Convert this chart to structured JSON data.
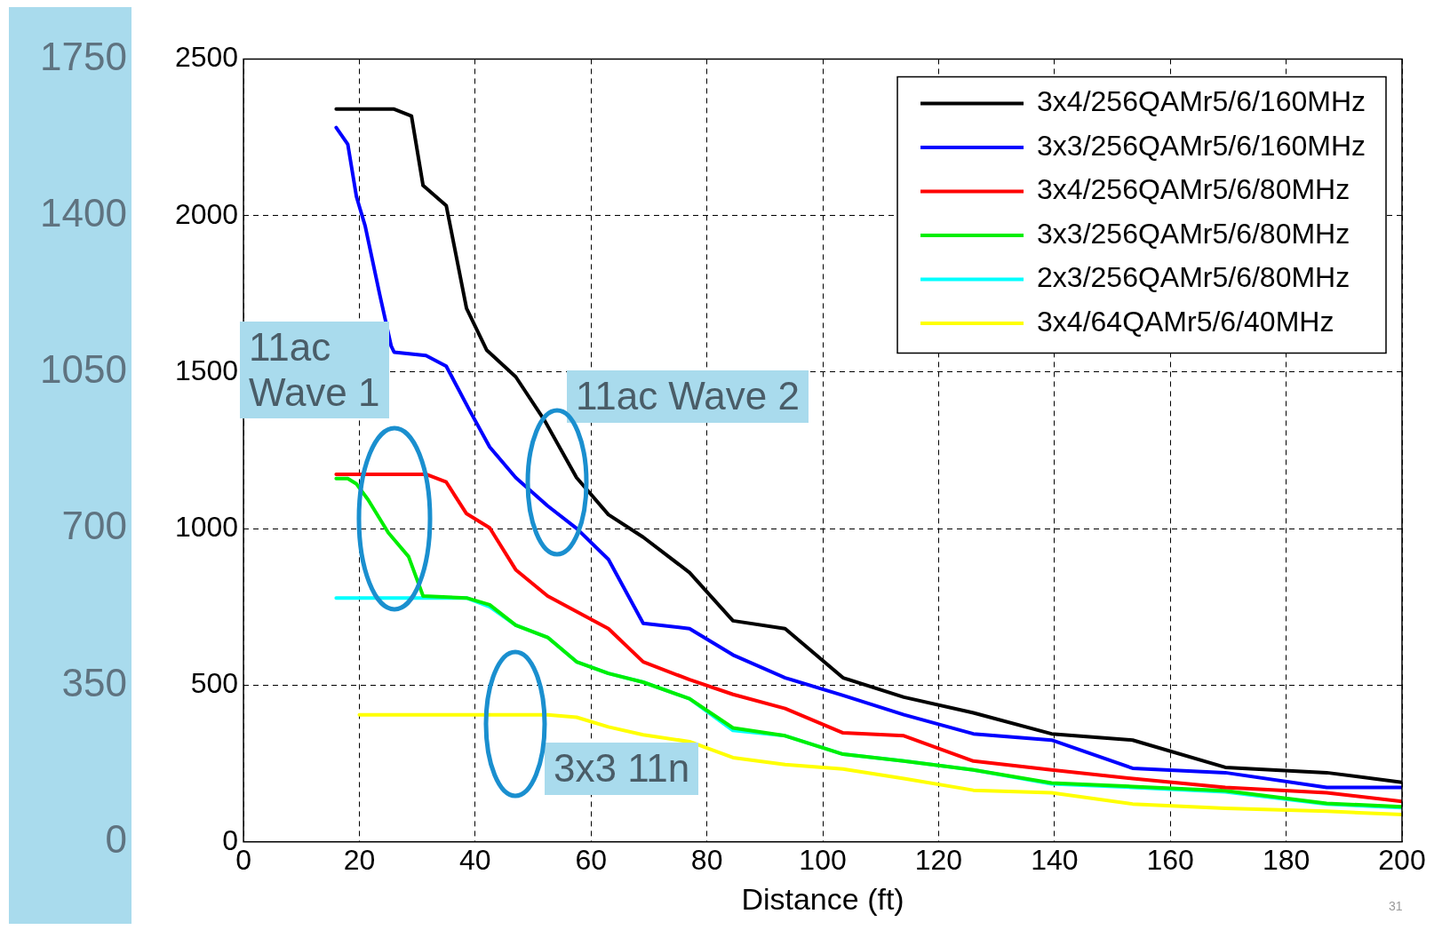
{
  "chart_data": {
    "type": "line",
    "xlabel": "Distance (ft)",
    "xlim": [
      0,
      200
    ],
    "xticks": [
      0,
      20,
      40,
      60,
      80,
      100,
      120,
      140,
      160,
      180,
      200
    ],
    "ylim": [
      0,
      2500
    ],
    "yticks": [
      0,
      500,
      1000,
      1500,
      2000,
      2500
    ],
    "y2lim": [
      0,
      1750
    ],
    "y2ticks": [
      0,
      350,
      700,
      1050,
      1400,
      1750
    ],
    "grid": true,
    "legend": "top right",
    "line_style": "solid",
    "marker": "none",
    "annotations": [
      "11ac\nWave 1",
      "11ac Wave 2",
      "3x3 11n",
      "31"
    ],
    "series": [
      {
        "name": "3x4/256QAMr5/6/160MHz",
        "color": "#000000",
        "x": [
          16,
          26,
          29,
          31,
          35,
          38.5,
          42,
          47,
          52,
          57.5,
          63,
          69,
          77,
          84.5,
          93.5,
          103.5,
          114,
          126,
          139.5,
          153.5,
          169.5,
          187,
          200
        ],
        "values": [
          2340,
          2340,
          2318,
          2096,
          2032,
          1704,
          1570,
          1485,
          1345,
          1163,
          1045,
          973,
          860,
          706,
          681,
          524,
          462,
          412,
          345,
          325,
          238,
          221,
          190
        ]
      },
      {
        "name": "3x3/256QAMr5/6/160MHz",
        "color": "#0000ff",
        "x": [
          16,
          18,
          19.5,
          21,
          23.5,
          25.5,
          26,
          31.5,
          35,
          39,
          42.5,
          47,
          52.5,
          57.5,
          63,
          69,
          77,
          84.5,
          93.5,
          103.5,
          114,
          126,
          139.5,
          153.5,
          169.5,
          187,
          200
        ],
        "values": [
          2281,
          2228,
          2060,
          1967,
          1749,
          1583,
          1564,
          1553,
          1519,
          1379,
          1261,
          1163,
          1073,
          1001,
          902,
          698,
          681,
          597,
          524,
          468,
          406,
          345,
          325,
          235,
          221,
          174,
          174
        ]
      },
      {
        "name": "3x4/256QAMr5/6/80MHz",
        "color": "#ff0000",
        "x": [
          16,
          31.5,
          35,
          38.5,
          42.5,
          47,
          52.5,
          63,
          69,
          77,
          84.5,
          93.5,
          103.5,
          114,
          126,
          139.5,
          153.5,
          169.5,
          187,
          200
        ],
        "values": [
          1174,
          1174,
          1149,
          1048,
          1003,
          869,
          785,
          681,
          575,
          518,
          471,
          426,
          348,
          339,
          258,
          230,
          202,
          174,
          157,
          129
        ]
      },
      {
        "name": "3x3/256QAMr5/6/80MHz",
        "color": "#00ee00",
        "x": [
          16,
          18,
          19.5,
          21.5,
          25,
          28.5,
          31,
          38.5,
          42.5,
          47,
          52.5,
          57.5,
          63,
          69,
          77,
          84.5,
          93.5,
          103.5,
          114,
          126,
          139.5,
          153.5,
          169.5,
          187,
          200
        ],
        "values": [
          1160,
          1160,
          1143,
          1093,
          987,
          911,
          785,
          779,
          757,
          692,
          653,
          575,
          538,
          510,
          457,
          364,
          339,
          280,
          258,
          230,
          188,
          177,
          163,
          123,
          112
        ]
      },
      {
        "name": "2x3/256QAMr5/6/80MHz",
        "color": "#00ffff",
        "x": [
          16,
          38.5,
          42.5,
          47,
          52.5,
          57.5,
          63,
          69,
          77,
          84.5,
          93.5,
          103.5,
          114,
          126,
          139.5,
          153.5,
          169.5,
          187,
          200
        ],
        "values": [
          779,
          779,
          751,
          692,
          653,
          575,
          538,
          510,
          457,
          356,
          339,
          280,
          258,
          230,
          185,
          174,
          160,
          121,
          109
        ]
      },
      {
        "name": "3x4/64QAMr5/6/40MHz",
        "color": "#ffff00",
        "x": [
          20,
          52.5,
          57.5,
          63,
          69,
          77,
          84.5,
          93.5,
          103.5,
          114,
          126,
          139.5,
          153.5,
          169.5,
          187,
          200
        ],
        "values": [
          406,
          406,
          398,
          367,
          342,
          320,
          269,
          247,
          233,
          202,
          165,
          157,
          121,
          107,
          98,
          87
        ]
      }
    ]
  }
}
